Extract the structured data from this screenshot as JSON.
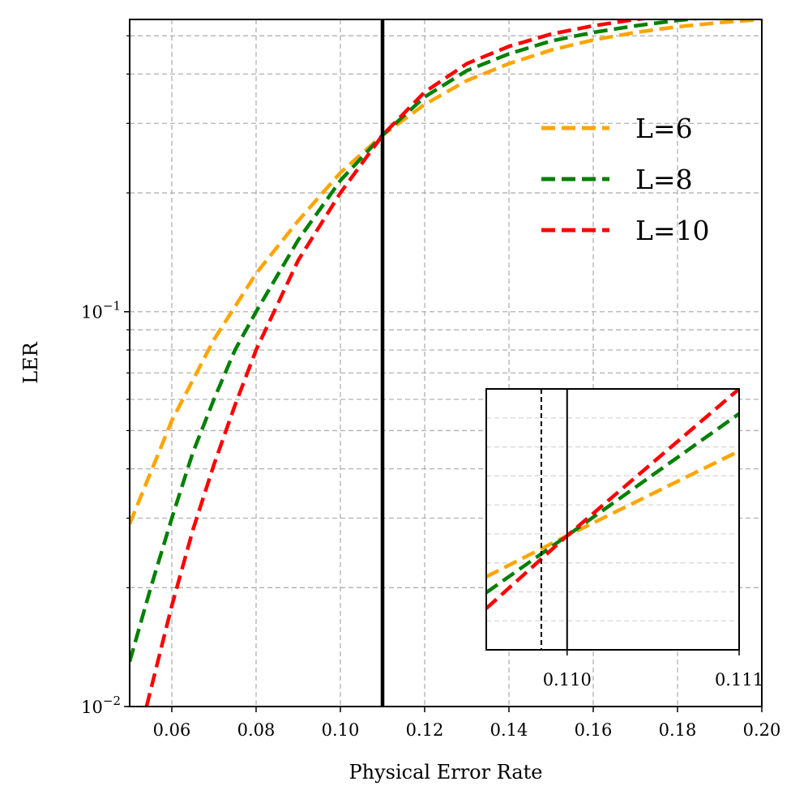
{
  "chart_data": {
    "type": "line",
    "xlabel": "Physical Error Rate",
    "ylabel": "LER",
    "xscale": "linear",
    "yscale": "log",
    "xlim": [
      0.05,
      0.2
    ],
    "ylim": [
      0.01,
      0.55
    ],
    "xticks": [
      "0.06",
      "0.08",
      "0.10",
      "0.12",
      "0.14",
      "0.16",
      "0.18",
      "0.20"
    ],
    "xtick_values": [
      0.06,
      0.08,
      0.1,
      0.12,
      0.14,
      0.16,
      0.18,
      0.2
    ],
    "yticks": [
      {
        "value": 0.1,
        "base": "10",
        "exp": "−1"
      },
      {
        "value": 0.01,
        "base": "10",
        "exp": "−2"
      }
    ],
    "grid": true,
    "legend_position": "upper-right",
    "threshold_line": {
      "x": 0.11,
      "color": "#000000"
    },
    "series": [
      {
        "name": "L=6",
        "color": "#FFA500",
        "style": "dashed",
        "x": [
          0.05,
          0.06,
          0.07,
          0.08,
          0.09,
          0.1,
          0.11,
          0.12,
          0.13,
          0.14,
          0.15,
          0.16,
          0.17,
          0.18,
          0.19,
          0.2
        ],
        "y": [
          0.029,
          0.053,
          0.085,
          0.125,
          0.17,
          0.225,
          0.28,
          0.335,
          0.385,
          0.425,
          0.46,
          0.488,
          0.51,
          0.527,
          0.54,
          0.55
        ]
      },
      {
        "name": "L=8",
        "color": "#008000",
        "style": "dashed",
        "x": [
          0.05,
          0.055,
          0.06,
          0.065,
          0.07,
          0.075,
          0.08,
          0.09,
          0.1,
          0.11,
          0.12,
          0.13,
          0.14,
          0.15,
          0.16,
          0.17,
          0.18,
          0.19,
          0.2
        ],
        "y": [
          0.013,
          0.02,
          0.03,
          0.044,
          0.06,
          0.08,
          0.1,
          0.152,
          0.215,
          0.28,
          0.35,
          0.408,
          0.45,
          0.485,
          0.51,
          0.53,
          0.547,
          0.56,
          0.568
        ]
      },
      {
        "name": "L=10",
        "color": "#FF0000",
        "style": "dashed",
        "x": [
          0.054,
          0.06,
          0.065,
          0.07,
          0.075,
          0.08,
          0.09,
          0.1,
          0.11,
          0.12,
          0.13,
          0.14,
          0.15,
          0.16,
          0.17,
          0.18,
          0.19,
          0.2
        ],
        "y": [
          0.01,
          0.018,
          0.028,
          0.041,
          0.058,
          0.08,
          0.135,
          0.2,
          0.28,
          0.36,
          0.425,
          0.47,
          0.505,
          0.53,
          0.55,
          0.565,
          0.575,
          0.582
        ]
      }
    ],
    "inset": {
      "xlim": [
        0.10953,
        0.111
      ],
      "ylim": [
        0.2762,
        0.2845
      ],
      "xticks": [
        "0.110",
        "0.111"
      ],
      "xtick_values": [
        0.11,
        0.111
      ],
      "grid": "horizontal",
      "lines": [
        {
          "x": 0.10985,
          "color": "#000000",
          "style": "dashed"
        },
        {
          "x": 0.11,
          "color": "#000000",
          "style": "solid"
        }
      ],
      "series": [
        {
          "name": "L=6",
          "color": "#FFA500",
          "x": [
            0.10953,
            0.11,
            0.111
          ],
          "y": [
            0.2785,
            0.2798,
            0.2825
          ]
        },
        {
          "name": "L=8",
          "color": "#008000",
          "x": [
            0.10953,
            0.11,
            0.111
          ],
          "y": [
            0.278,
            0.2798,
            0.2837
          ]
        },
        {
          "name": "L=10",
          "color": "#FF0000",
          "x": [
            0.10953,
            0.11,
            0.111
          ],
          "y": [
            0.2775,
            0.2798,
            0.2845
          ]
        }
      ]
    }
  }
}
